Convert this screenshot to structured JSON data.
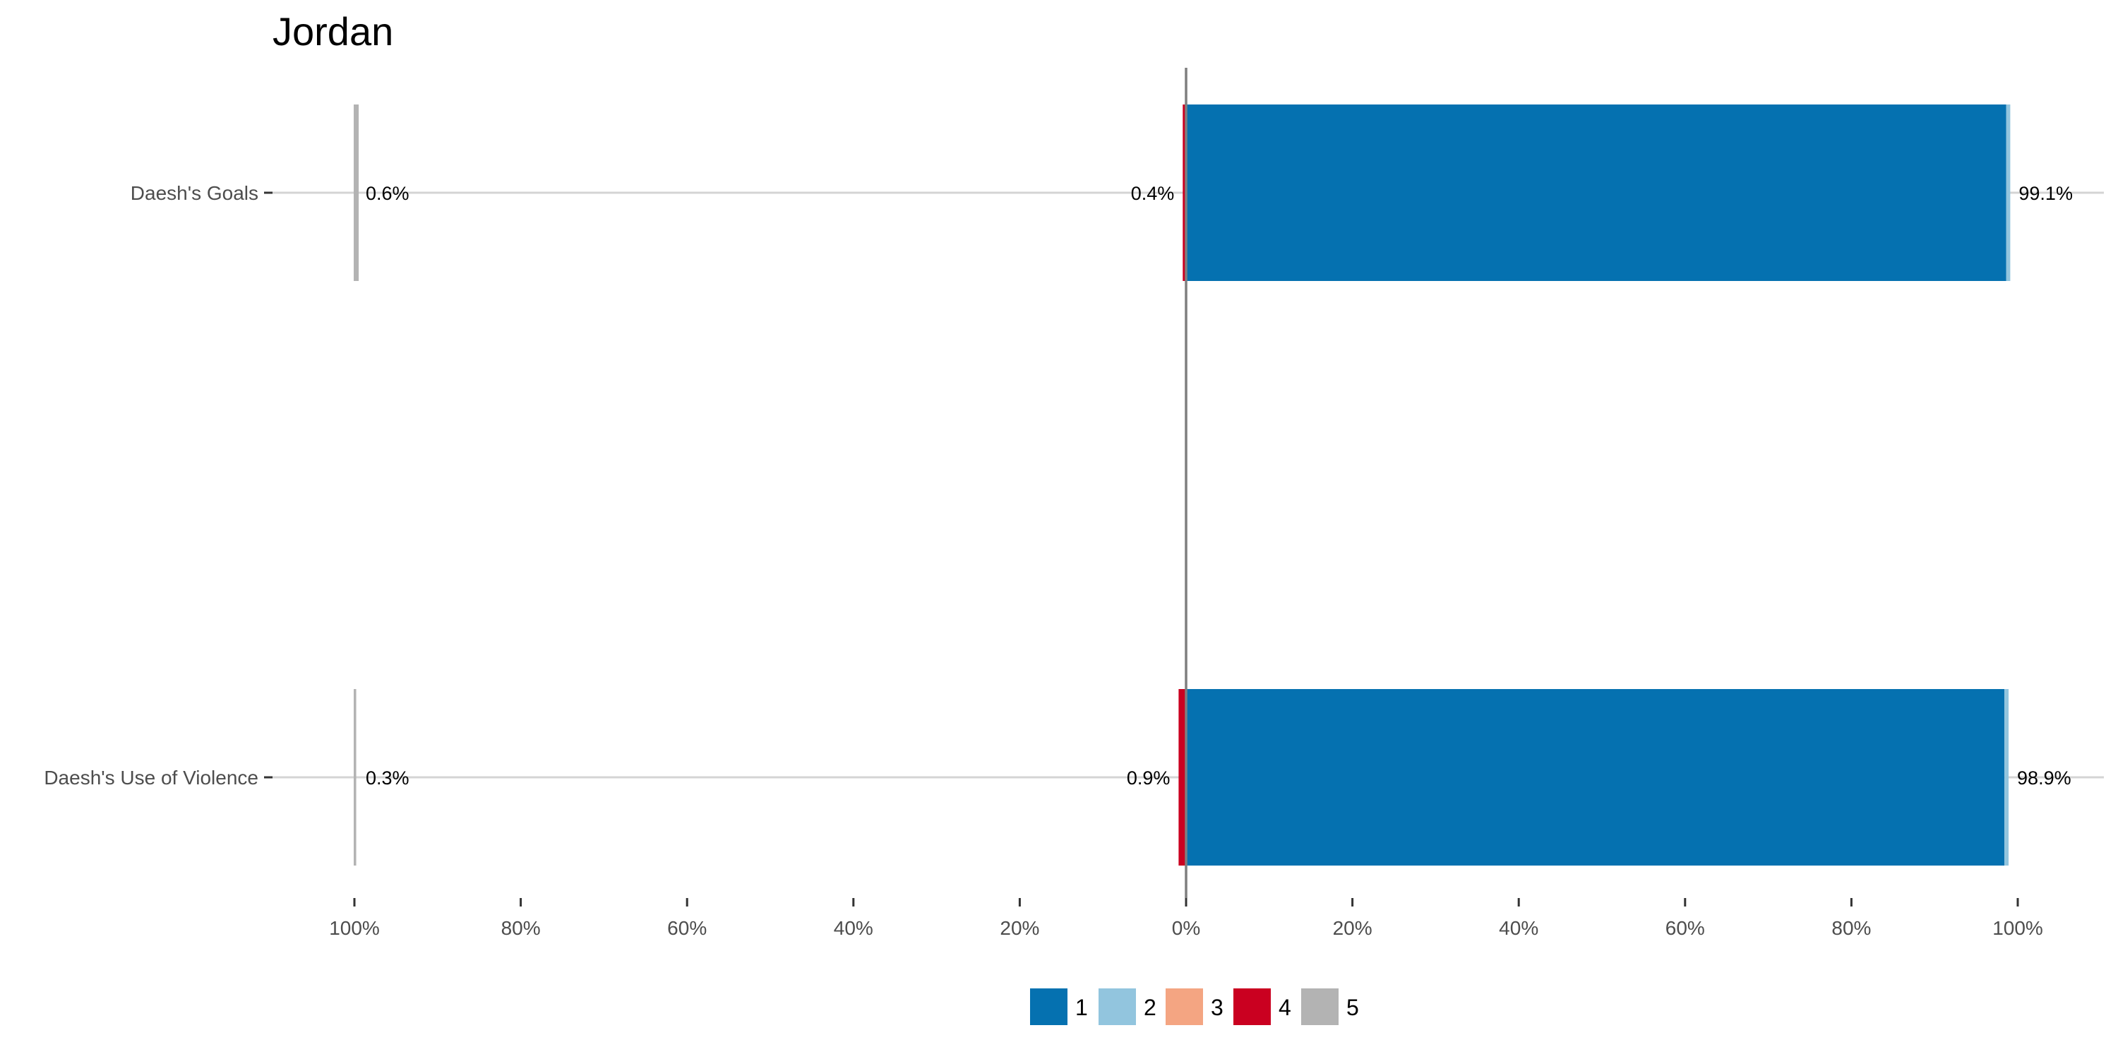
{
  "chart_data": {
    "type": "bar",
    "orientation": "horizontal-diverging",
    "title": "Jordan",
    "xlabel": "",
    "ylabel": "",
    "xlim": [
      -100,
      100
    ],
    "x_ticks": [
      -100,
      -80,
      -60,
      -40,
      -20,
      0,
      20,
      40,
      60,
      80,
      100
    ],
    "x_tick_labels": [
      "100%",
      "80%",
      "60%",
      "40%",
      "20%",
      "0%",
      "20%",
      "40%",
      "60%",
      "80%",
      "100%"
    ],
    "grid": false,
    "legend_position": "bottom",
    "categories": [
      "Daesh's Goals",
      "Daesh's Use of Violence"
    ],
    "series": [
      {
        "name": "1",
        "color": "#0571b0",
        "side": "right",
        "values": [
          98.6,
          98.4
        ]
      },
      {
        "name": "2",
        "color": "#92c5de",
        "side": "right",
        "values": [
          0.5,
          0.5
        ]
      },
      {
        "name": "3",
        "color": "#f4a582",
        "side": "left",
        "values": [
          0.0,
          0.0
        ]
      },
      {
        "name": "4",
        "color": "#ca0020",
        "side": "left",
        "values": [
          0.4,
          0.9
        ]
      },
      {
        "name": "5",
        "color": "#b3b3b3",
        "side": "offset-left",
        "values": [
          0.6,
          0.3
        ]
      }
    ],
    "data_labels": [
      {
        "right": "99.1%",
        "left": "0.4%",
        "neutral": "0.6%"
      },
      {
        "right": "98.9%",
        "left": "0.9%",
        "neutral": "0.3%"
      }
    ]
  }
}
